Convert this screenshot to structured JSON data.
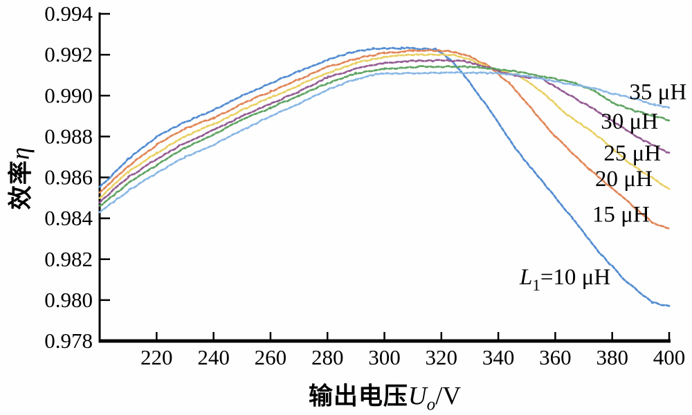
{
  "figure": {
    "background": "#fefefe",
    "xlabel_parts": {
      "cjk": "输出电压",
      "var": "U",
      "sub": "o",
      "unit": "/V"
    },
    "ylabel_parts": {
      "cjk": "效率",
      "var": "η"
    }
  },
  "chart_data": {
    "type": "line",
    "title": "",
    "xlabel": "输出电压U_o/V",
    "ylabel": "效率η",
    "xlim": [
      200,
      400
    ],
    "ylim": [
      0.978,
      0.994
    ],
    "x_ticks": [
      220,
      240,
      260,
      280,
      300,
      320,
      340,
      360,
      380,
      400
    ],
    "y_ticks": [
      0.978,
      0.98,
      0.982,
      0.984,
      0.986,
      0.988,
      0.99,
      0.992,
      0.994
    ],
    "y_tick_decimals": 3,
    "grid": false,
    "legend": "inline-labels",
    "axis_color": "#000000",
    "series": [
      {
        "name": "L1=10 uH",
        "color": "#4a86cf",
        "label": {
          "parts": [
            {
              "t": "L",
              "italic": true
            },
            {
              "t": "1",
              "sub": true
            },
            {
              "t": "=10 μH"
            }
          ],
          "x": 347.5,
          "y": 0.98115
        },
        "points": [
          [
            200,
            0.9855
          ],
          [
            210,
            0.9869
          ],
          [
            220,
            0.988
          ],
          [
            230,
            0.9887
          ],
          [
            240,
            0.9893
          ],
          [
            250,
            0.99
          ],
          [
            260,
            0.9906
          ],
          [
            270,
            0.9912
          ],
          [
            280,
            0.99175
          ],
          [
            288,
            0.9921
          ],
          [
            296,
            0.9923
          ],
          [
            306,
            0.99232
          ],
          [
            318,
            0.99228
          ],
          [
            323,
            0.9918
          ],
          [
            328,
            0.991
          ],
          [
            338,
            0.9891
          ],
          [
            346,
            0.9874
          ],
          [
            356,
            0.9857
          ],
          [
            366,
            0.984
          ],
          [
            375,
            0.9824
          ],
          [
            385,
            0.9809
          ],
          [
            394,
            0.9799
          ],
          [
            400,
            0.9797
          ]
        ]
      },
      {
        "name": "15 uH",
        "color": "#df8150",
        "label": {
          "parts": [
            {
              "t": "15 μH"
            }
          ],
          "x": 373,
          "y": 0.9842
        },
        "points": [
          [
            200,
            0.98525
          ],
          [
            210,
            0.98655
          ],
          [
            220,
            0.9876
          ],
          [
            230,
            0.9884
          ],
          [
            240,
            0.9889
          ],
          [
            250,
            0.9896
          ],
          [
            260,
            0.9902
          ],
          [
            270,
            0.9908
          ],
          [
            280,
            0.9914
          ],
          [
            290,
            0.9918
          ],
          [
            300,
            0.9921
          ],
          [
            310,
            0.9922
          ],
          [
            322,
            0.9922
          ],
          [
            330,
            0.9919
          ],
          [
            336,
            0.9915
          ],
          [
            344,
            0.9906
          ],
          [
            352,
            0.9893
          ],
          [
            360,
            0.988
          ],
          [
            372,
            0.9864
          ],
          [
            384,
            0.985
          ],
          [
            394,
            0.9838
          ],
          [
            400,
            0.9835
          ]
        ]
      },
      {
        "name": "20 uH",
        "color": "#e8ce5c",
        "label": {
          "parts": [
            {
              "t": "20 μH"
            }
          ],
          "x": 374,
          "y": 0.98595
        },
        "points": [
          [
            200,
            0.985
          ],
          [
            210,
            0.98625
          ],
          [
            220,
            0.9872
          ],
          [
            230,
            0.988
          ],
          [
            240,
            0.9886
          ],
          [
            250,
            0.9893
          ],
          [
            260,
            0.9899
          ],
          [
            270,
            0.9905
          ],
          [
            280,
            0.9911
          ],
          [
            290,
            0.9916
          ],
          [
            300,
            0.9919
          ],
          [
            312,
            0.992
          ],
          [
            325,
            0.99198
          ],
          [
            333,
            0.9916
          ],
          [
            340,
            0.9912
          ],
          [
            347,
            0.991
          ],
          [
            356,
            0.9901
          ],
          [
            364,
            0.9891
          ],
          [
            376,
            0.9879
          ],
          [
            386,
            0.9867
          ],
          [
            396,
            0.9858
          ],
          [
            400,
            0.98545
          ]
        ]
      },
      {
        "name": "25 uH",
        "color": "#8f548e",
        "label": {
          "parts": [
            {
              "t": "25 μH"
            }
          ],
          "x": 377,
          "y": 0.9872
        },
        "points": [
          [
            200,
            0.9848
          ],
          [
            210,
            0.986
          ],
          [
            220,
            0.9869
          ],
          [
            230,
            0.9877
          ],
          [
            240,
            0.9883
          ],
          [
            250,
            0.989
          ],
          [
            260,
            0.9896
          ],
          [
            270,
            0.9902
          ],
          [
            280,
            0.9909
          ],
          [
            290,
            0.9913
          ],
          [
            300,
            0.9916
          ],
          [
            312,
            0.99172
          ],
          [
            328,
            0.9917
          ],
          [
            338,
            0.9913
          ],
          [
            346,
            0.99095
          ],
          [
            355,
            0.99085
          ],
          [
            364,
            0.9901
          ],
          [
            374,
            0.9893
          ],
          [
            389,
            0.98795
          ],
          [
            400,
            0.9872
          ]
        ]
      },
      {
        "name": "30 uH",
        "color": "#57a05c",
        "label": {
          "parts": [
            {
              "t": "30 μH"
            }
          ],
          "x": 376,
          "y": 0.98876
        },
        "points": [
          [
            200,
            0.9846
          ],
          [
            210,
            0.9857
          ],
          [
            220,
            0.9866
          ],
          [
            230,
            0.98745
          ],
          [
            240,
            0.9881
          ],
          [
            250,
            0.9888
          ],
          [
            260,
            0.9894
          ],
          [
            270,
            0.99
          ],
          [
            280,
            0.9906
          ],
          [
            290,
            0.9911
          ],
          [
            300,
            0.9913
          ],
          [
            312,
            0.99142
          ],
          [
            333,
            0.9914
          ],
          [
            345,
            0.9912
          ],
          [
            357,
            0.9909
          ],
          [
            367,
            0.9906
          ],
          [
            374,
            0.9902
          ],
          [
            381,
            0.9896
          ],
          [
            388,
            0.98925
          ],
          [
            400,
            0.9888
          ]
        ]
      },
      {
        "name": "35 uH",
        "color": "#83b3e4",
        "label": {
          "parts": [
            {
              "t": "35 μH"
            }
          ],
          "x": 386,
          "y": 0.9902
        },
        "points": [
          [
            200,
            0.9843
          ],
          [
            210,
            0.98535
          ],
          [
            220,
            0.9862
          ],
          [
            230,
            0.987
          ],
          [
            240,
            0.9876
          ],
          [
            250,
            0.9883
          ],
          [
            260,
            0.989
          ],
          [
            270,
            0.9896
          ],
          [
            280,
            0.9903
          ],
          [
            290,
            0.9908
          ],
          [
            298,
            0.99108
          ],
          [
            320,
            0.99112
          ],
          [
            340,
            0.9911
          ],
          [
            348,
            0.991
          ],
          [
            356,
            0.9908
          ],
          [
            364,
            0.9906
          ],
          [
            372,
            0.9904
          ],
          [
            380,
            0.9901
          ],
          [
            388,
            0.98985
          ],
          [
            395,
            0.98955
          ],
          [
            400,
            0.9894
          ]
        ]
      }
    ]
  }
}
